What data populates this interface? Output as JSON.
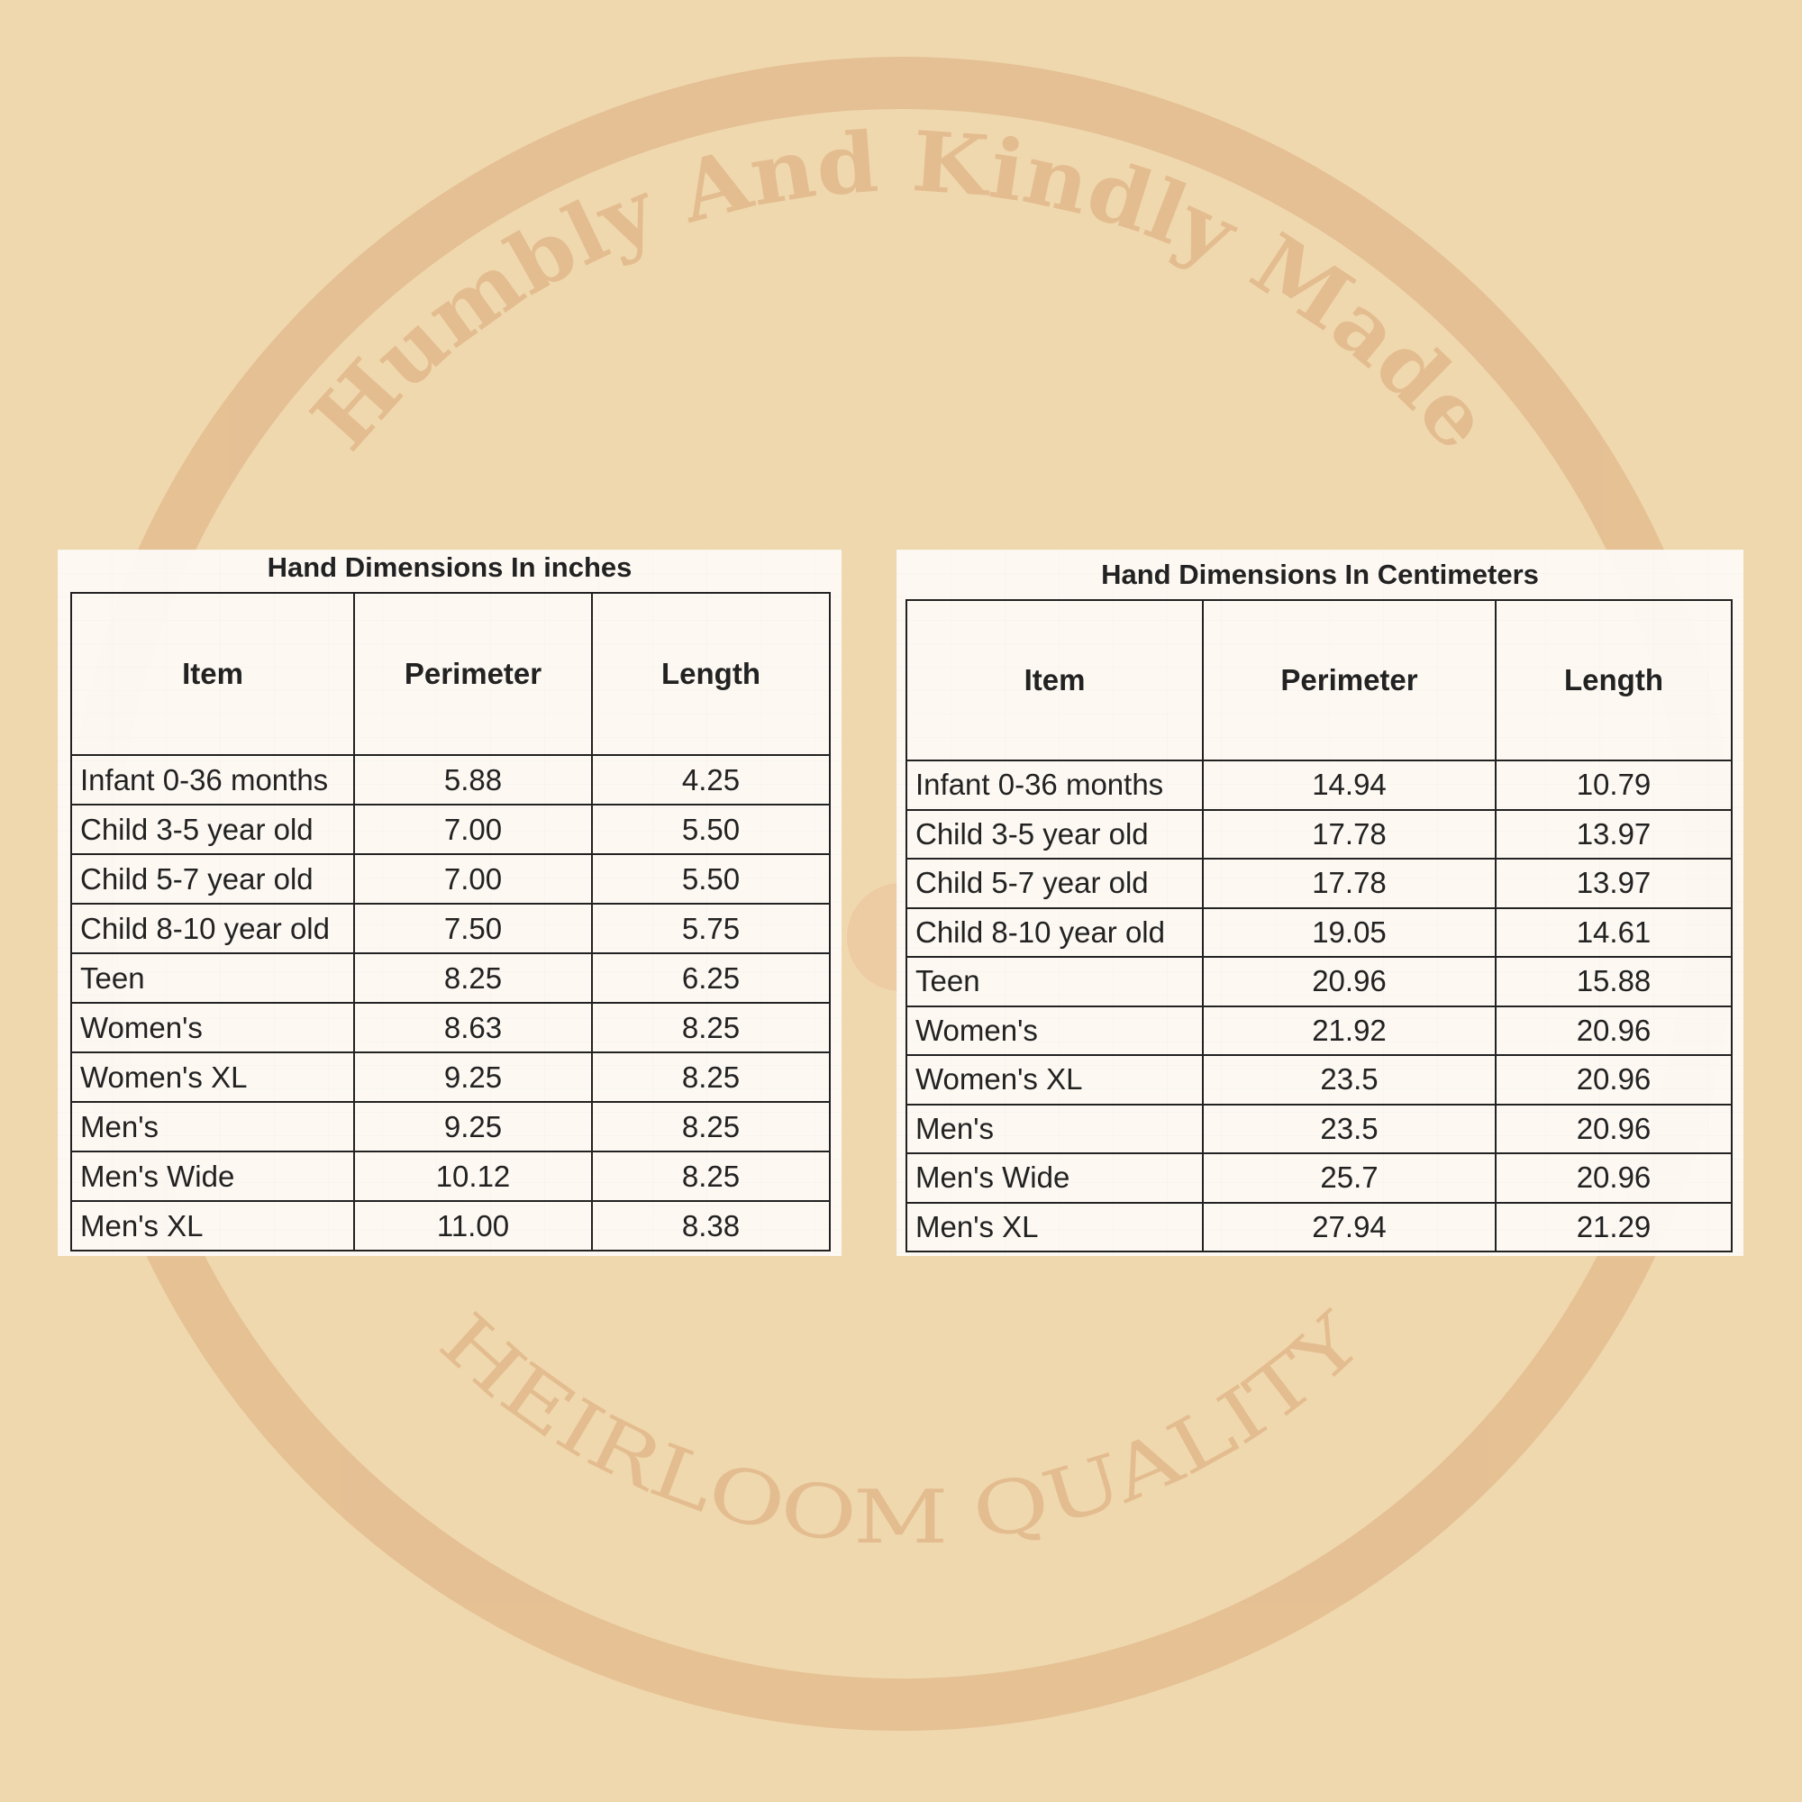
{
  "watermark": {
    "top_text": "Humbly And Kindly Made",
    "bottom_text": "HEIRLOOM QUALITY",
    "color": "#e3bd92"
  },
  "colors": {
    "background": "#f0d8ae",
    "table_border": "#222222"
  },
  "inches_table": {
    "title": "Hand Dimensions In inches",
    "headers": [
      "Item",
      "Perimeter",
      "Length"
    ],
    "rows": [
      [
        "Infant 0-36 months",
        "5.88",
        "4.25"
      ],
      [
        "Child 3-5 year old",
        "7.00",
        "5.50"
      ],
      [
        "Child 5-7 year old",
        "7.00",
        "5.50"
      ],
      [
        "Child 8-10 year old",
        "7.50",
        "5.75"
      ],
      [
        "Teen",
        "8.25",
        "6.25"
      ],
      [
        "Women's",
        "8.63",
        "8.25"
      ],
      [
        "Women's XL",
        "9.25",
        "8.25"
      ],
      [
        "Men's",
        "9.25",
        "8.25"
      ],
      [
        "Men's Wide",
        "10.12",
        "8.25"
      ],
      [
        "Men's XL",
        "11.00",
        "8.38"
      ]
    ]
  },
  "cm_table": {
    "title": "Hand Dimensions In Centimeters",
    "headers": [
      "Item",
      "Perimeter",
      "Length"
    ],
    "rows": [
      [
        "Infant 0-36 months",
        "14.94",
        "10.79"
      ],
      [
        "Child 3-5 year old",
        "17.78",
        "13.97"
      ],
      [
        "Child 5-7 year old",
        "17.78",
        "13.97"
      ],
      [
        "Child 8-10 year old",
        "19.05",
        "14.61"
      ],
      [
        "Teen",
        "20.96",
        "15.88"
      ],
      [
        "Women's",
        "21.92",
        "20.96"
      ],
      [
        "Women's XL",
        "23.5",
        "20.96"
      ],
      [
        "Men's",
        "23.5",
        "20.96"
      ],
      [
        "Men's Wide",
        "25.7",
        "20.96"
      ],
      [
        "Men's XL",
        "27.94",
        "21.29"
      ]
    ]
  }
}
